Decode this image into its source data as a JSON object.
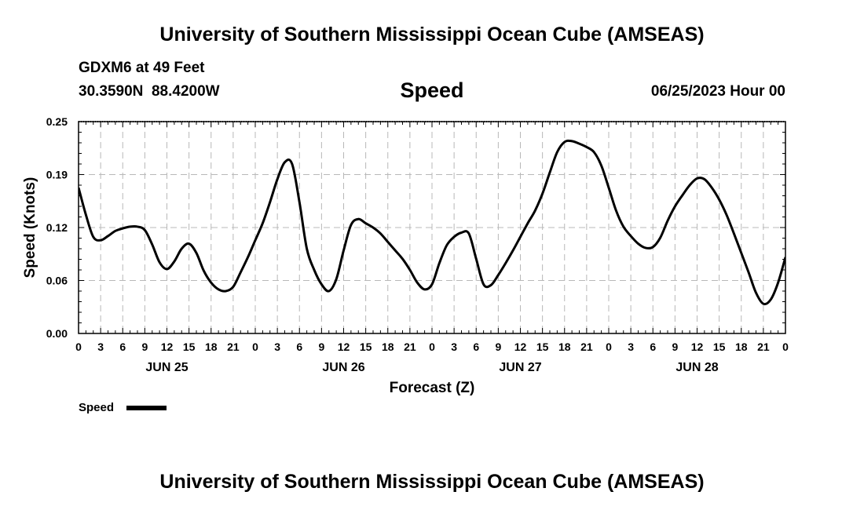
{
  "header": {
    "title": "University of Southern Mississippi Ocean Cube (AMSEAS)",
    "station": "GDXM6 at 49 Feet",
    "coords": "30.3590N  88.4200W",
    "variable": "Speed",
    "datetime": "06/25/2023 Hour 00"
  },
  "footer": {
    "title": "University of Southern Mississippi Ocean Cube (AMSEAS)"
  },
  "chart_data": {
    "type": "line",
    "title": "Speed",
    "xlabel": "Forecast (Z)",
    "ylabel": "Speed (Knots)",
    "xlim": [
      0,
      96
    ],
    "ylim": [
      0,
      0.25
    ],
    "yticks": [
      "0.00",
      "0.06",
      "0.12",
      "0.19",
      "0.25"
    ],
    "ytick_values": [
      0,
      0.0625,
      0.125,
      0.1875,
      0.25
    ],
    "xtick_labels": [
      "0",
      "3",
      "6",
      "9",
      "12",
      "15",
      "18",
      "21",
      "0",
      "3",
      "6",
      "9",
      "12",
      "15",
      "18",
      "21",
      "0",
      "3",
      "6",
      "9",
      "12",
      "15",
      "18",
      "21",
      "0",
      "3",
      "6",
      "9",
      "12",
      "15",
      "18",
      "21",
      "0"
    ],
    "day_labels": [
      {
        "label": "JUN 25",
        "hour": 12
      },
      {
        "label": "JUN 26",
        "hour": 36
      },
      {
        "label": "JUN 27",
        "hour": 60
      },
      {
        "label": "JUN 28",
        "hour": 84
      }
    ],
    "grid": true,
    "legend": {
      "label": "Speed",
      "position": "bottom-left"
    },
    "series": [
      {
        "name": "Speed",
        "color": "#000000",
        "x": [
          0,
          1,
          2,
          3,
          4,
          5,
          6,
          7,
          8,
          9,
          10,
          11,
          12,
          13,
          14,
          15,
          16,
          17,
          18,
          19,
          20,
          21,
          22,
          23,
          24,
          25,
          26,
          27,
          28,
          29,
          30,
          31,
          32,
          33,
          34,
          35,
          36,
          37,
          38,
          39,
          40,
          41,
          42,
          43,
          44,
          45,
          46,
          47,
          48,
          49,
          50,
          51,
          52,
          53,
          54,
          55,
          56,
          57,
          58,
          59,
          60,
          61,
          62,
          63,
          64,
          65,
          66,
          67,
          68,
          69,
          70,
          71,
          72,
          73,
          74,
          75,
          76,
          77,
          78,
          79,
          80,
          81,
          82,
          83,
          84,
          85,
          86,
          87,
          88,
          89,
          90,
          91,
          92,
          93,
          94,
          95,
          96
        ],
        "values": [
          0.172,
          0.14,
          0.114,
          0.11,
          0.115,
          0.121,
          0.124,
          0.126,
          0.126,
          0.122,
          0.105,
          0.084,
          0.076,
          0.085,
          0.1,
          0.106,
          0.095,
          0.074,
          0.06,
          0.052,
          0.05,
          0.055,
          0.072,
          0.09,
          0.11,
          0.13,
          0.155,
          0.182,
          0.202,
          0.2,
          0.155,
          0.1,
          0.075,
          0.058,
          0.05,
          0.064,
          0.098,
          0.128,
          0.135,
          0.13,
          0.125,
          0.118,
          0.108,
          0.098,
          0.088,
          0.075,
          0.06,
          0.052,
          0.058,
          0.083,
          0.104,
          0.114,
          0.119,
          0.118,
          0.088,
          0.058,
          0.057,
          0.069,
          0.083,
          0.098,
          0.114,
          0.13,
          0.145,
          0.165,
          0.19,
          0.214,
          0.226,
          0.227,
          0.224,
          0.22,
          0.214,
          0.198,
          0.172,
          0.145,
          0.126,
          0.115,
          0.106,
          0.101,
          0.102,
          0.113,
          0.133,
          0.15,
          0.163,
          0.175,
          0.183,
          0.182,
          0.172,
          0.158,
          0.14,
          0.118,
          0.095,
          0.072,
          0.048,
          0.035,
          0.04,
          0.06,
          0.09
        ]
      }
    ]
  }
}
